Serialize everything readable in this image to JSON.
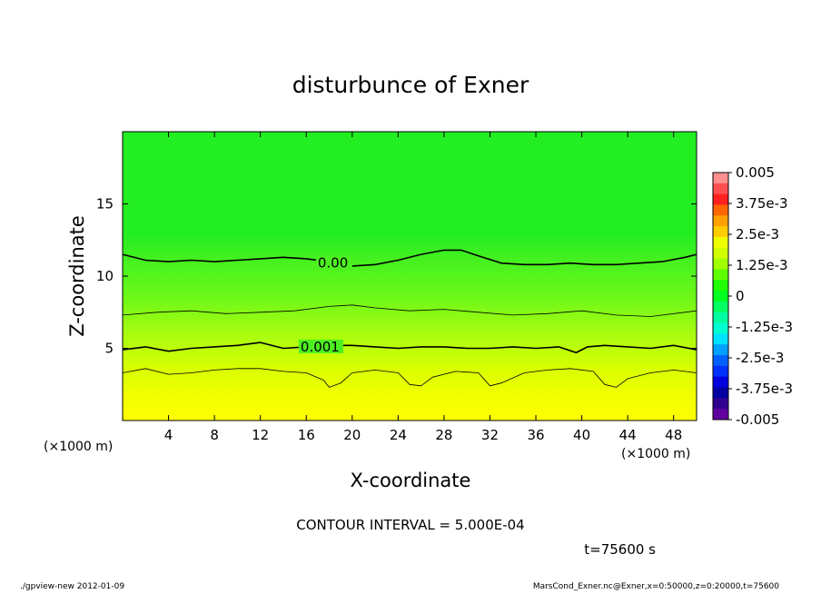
{
  "chart_data": {
    "type": "heatmap",
    "title": "disturbunce of Exner",
    "xlabel": "X-coordinate",
    "ylabel": "Z-coordinate",
    "x_unit": "(×1000 m)",
    "y_unit": "(×1000 m)",
    "xlim": [
      0,
      50
    ],
    "ylim": [
      0,
      20
    ],
    "x_ticks": [
      4,
      8,
      12,
      16,
      20,
      24,
      28,
      32,
      36,
      40,
      44,
      48
    ],
    "y_ticks": [
      5,
      10,
      15
    ],
    "colorbar": {
      "range": [
        -0.005,
        0.005
      ],
      "tick_labels": [
        "0.005",
        "3.75e-3",
        "2.5e-3",
        "1.25e-3",
        "0",
        "-1.25e-3",
        "-2.5e-3",
        "-3.75e-3",
        "-0.005"
      ],
      "colors": [
        "#ff9090",
        "#ff5050",
        "#ff2020",
        "#ff6600",
        "#ffa000",
        "#ffcc00",
        "#eeff00",
        "#d0ff00",
        "#a0ff00",
        "#60ff00",
        "#20ff00",
        "#00ff20",
        "#00ff60",
        "#00ffa0",
        "#00ffd0",
        "#00e0ff",
        "#00a0ff",
        "#0060ff",
        "#0030ff",
        "#0000e0",
        "#0000a0",
        "#300090",
        "#6000a0"
      ]
    },
    "contour_labels": [
      {
        "text": "0.00",
        "x": 17,
        "z": 10.9
      },
      {
        "text": "0.001",
        "x": 15.5,
        "z": 5.1
      }
    ],
    "contour_lines": [
      {
        "level": 0.0,
        "bold": true,
        "x": [
          0,
          2,
          4,
          6,
          8,
          10,
          12,
          14,
          16,
          18,
          20,
          22,
          24,
          26,
          28,
          29.5,
          31,
          33,
          35,
          37,
          39,
          41,
          43,
          45,
          47,
          49,
          50
        ],
        "z": [
          11.5,
          11.1,
          11.0,
          11.1,
          11.0,
          11.1,
          11.2,
          11.3,
          11.2,
          11.0,
          10.7,
          10.8,
          11.1,
          11.5,
          11.8,
          11.8,
          11.4,
          10.9,
          10.8,
          10.8,
          10.9,
          10.8,
          10.8,
          10.9,
          11.0,
          11.3,
          11.5
        ]
      },
      {
        "level": 0.0005,
        "bold": false,
        "x": [
          0,
          3,
          6,
          9,
          12,
          15,
          18,
          20,
          22,
          25,
          28,
          31,
          34,
          37,
          40,
          43,
          46,
          50
        ],
        "z": [
          7.3,
          7.5,
          7.6,
          7.4,
          7.5,
          7.6,
          7.9,
          8.0,
          7.8,
          7.6,
          7.7,
          7.5,
          7.3,
          7.4,
          7.6,
          7.3,
          7.2,
          7.6
        ]
      },
      {
        "level": 0.001,
        "bold": true,
        "x": [
          0,
          2,
          4,
          6,
          8,
          10,
          12,
          14,
          16,
          18,
          20,
          22,
          24,
          26,
          28,
          30,
          32,
          34,
          36,
          38,
          39.5,
          40.5,
          42,
          44,
          46,
          48,
          50
        ],
        "z": [
          4.9,
          5.1,
          4.8,
          5.0,
          5.1,
          5.2,
          5.4,
          5.0,
          5.1,
          5.2,
          5.2,
          5.1,
          5.0,
          5.1,
          5.1,
          5.0,
          5.0,
          5.1,
          5.0,
          5.1,
          4.7,
          5.1,
          5.2,
          5.1,
          5.0,
          5.2,
          4.9
        ]
      },
      {
        "level": 0.0015,
        "bold": false,
        "x": [
          0,
          2,
          4,
          6,
          8,
          10,
          12,
          14,
          16,
          17.5,
          18,
          19,
          20,
          22,
          24,
          25,
          26,
          27,
          29,
          31,
          32,
          33,
          35,
          37,
          39,
          41,
          42,
          43,
          44,
          46,
          48,
          50
        ],
        "z": [
          3.3,
          3.6,
          3.2,
          3.3,
          3.5,
          3.6,
          3.6,
          3.4,
          3.3,
          2.8,
          2.3,
          2.6,
          3.3,
          3.5,
          3.3,
          2.5,
          2.4,
          3.0,
          3.4,
          3.3,
          2.4,
          2.6,
          3.3,
          3.5,
          3.6,
          3.4,
          2.5,
          2.3,
          2.9,
          3.3,
          3.5,
          3.3
        ]
      }
    ],
    "contour_interval_text": "CONTOUR INTERVAL = 5.000E-04",
    "time_text": "t=75600 s"
  },
  "footer": {
    "left": "./gpview-new   2012-01-09",
    "right": "MarsCond_Exner.nc@Exner,x=0:50000,z=0:20000,t=75600"
  }
}
